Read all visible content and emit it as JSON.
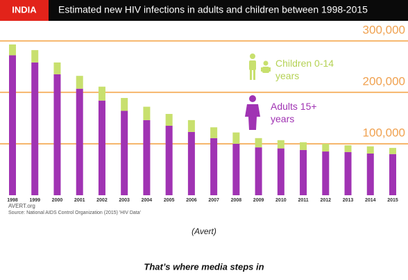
{
  "chart_data": {
    "type": "stacked-bar",
    "badge": "INDIA",
    "title": "Estimated new HIV infections in adults and children between 1998-2015",
    "categories": [
      "1998",
      "1999",
      "2000",
      "2001",
      "2002",
      "2003",
      "2004",
      "2005",
      "2006",
      "2007",
      "2008",
      "2009",
      "2010",
      "2011",
      "2012",
      "2013",
      "2014",
      "2015"
    ],
    "series": [
      {
        "name": "Adults 15+ years",
        "color": "#a033b3",
        "values": [
          272000,
          258000,
          235000,
          207000,
          184000,
          164000,
          146000,
          135000,
          123000,
          111000,
          100000,
          93000,
          91000,
          88000,
          85000,
          84000,
          81000,
          80000
        ]
      },
      {
        "name": "Children 0-14 years",
        "color": "#c8e06e",
        "values": [
          21000,
          24000,
          23000,
          25000,
          27000,
          25000,
          26000,
          23000,
          23000,
          21000,
          22000,
          18000,
          16000,
          15000,
          15000,
          13000,
          14000,
          12000
        ]
      }
    ],
    "ylim": [
      0,
      320000
    ],
    "yticks": [
      {
        "value": 100000,
        "label": "100,000"
      },
      {
        "value": 200000,
        "label": "200,000"
      },
      {
        "value": 300000,
        "label": "300,000"
      }
    ],
    "grid": true,
    "grid_color": "#f6b66c",
    "source_site": "AVERT.org",
    "source": "Source: National AIDS Control Organization (2015) 'HIV Data'",
    "caption": "(Avert)",
    "footer": "That’s where media steps in"
  }
}
